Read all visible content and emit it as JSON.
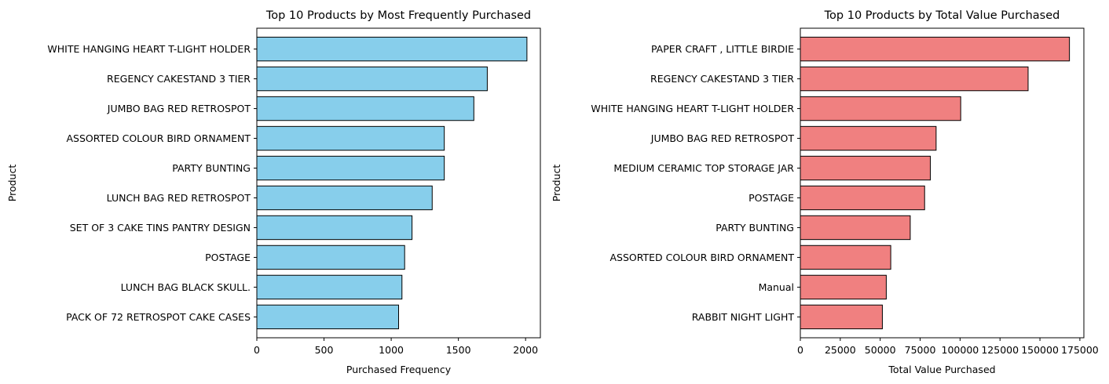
{
  "chart_data": [
    {
      "type": "bar",
      "orientation": "horizontal",
      "title": "Top 10 Products by Most Frequently Purchased",
      "xlabel": "Purchased Frequency",
      "ylabel": "Product",
      "categories": [
        "WHITE HANGING HEART T-LIGHT HOLDER",
        "REGENCY CAKESTAND 3 TIER",
        "JUMBO BAG RED RETROSPOT",
        "ASSORTED COLOUR BIRD ORNAMENT",
        "PARTY BUNTING",
        "LUNCH BAG RED RETROSPOT",
        "SET OF 3 CAKE TINS PANTRY DESIGN ",
        "POSTAGE",
        "LUNCH BAG  BLACK SKULL.",
        "PACK OF 72 RETROSPOT CAKE CASES"
      ],
      "values": [
        2010,
        1715,
        1615,
        1395,
        1395,
        1305,
        1155,
        1100,
        1080,
        1055
      ],
      "xlim": [
        0,
        2110
      ],
      "xticks": [
        0,
        500,
        1000,
        1500,
        2000
      ],
      "xtick_labels": [
        "0",
        "500",
        "1000",
        "1500",
        "2000"
      ],
      "bar_color": "#87CEEB",
      "edge_color": "#000000",
      "grid": false
    },
    {
      "type": "bar",
      "orientation": "horizontal",
      "title": "Top 10 Products by Total Value Purchased",
      "xlabel": "Total Value Purchased",
      "ylabel": "Product",
      "categories": [
        "PAPER CRAFT , LITTLE BIRDIE",
        "REGENCY CAKESTAND 3 TIER",
        "WHITE HANGING HEART T-LIGHT HOLDER",
        "JUMBO BAG RED RETROSPOT",
        "MEDIUM CERAMIC TOP STORAGE JAR",
        "POSTAGE",
        "PARTY BUNTING",
        "ASSORTED COLOUR BIRD ORNAMENT",
        "Manual",
        "RABBIT NIGHT LIGHT"
      ],
      "values": [
        168470,
        142590,
        100400,
        85000,
        81400,
        77800,
        68800,
        56600,
        53800,
        51350
      ],
      "xlim": [
        0,
        177500
      ],
      "xticks": [
        0,
        25000,
        50000,
        75000,
        100000,
        125000,
        150000,
        175000
      ],
      "xtick_labels": [
        "0",
        "25000",
        "50000",
        "75000",
        "100000",
        "125000",
        "150000",
        "175000"
      ],
      "bar_color": "#F08080",
      "edge_color": "#000000",
      "grid": false
    }
  ]
}
